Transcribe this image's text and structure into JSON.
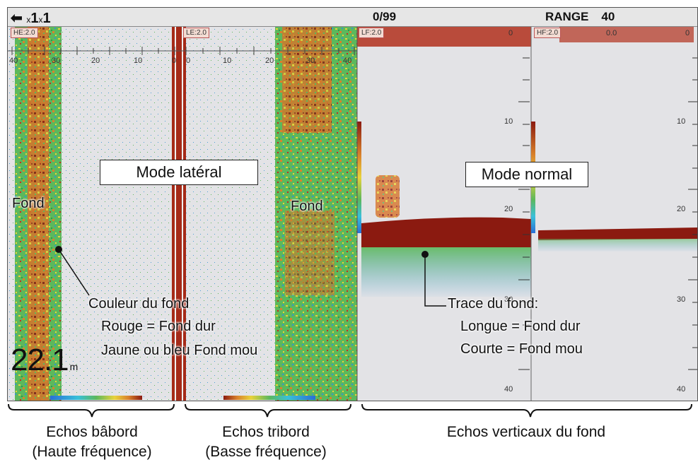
{
  "topbar": {
    "back_icon": "left-arrow-icon",
    "zoom_a": "1",
    "zoom_b": "1",
    "zoom_prefix": "x",
    "counter": "0/99",
    "range_label": "RANGE",
    "range_value": "40"
  },
  "panels": {
    "port_tag": "HE:2.0",
    "starboard_tag": "LE:2.0",
    "lf_tag": "LF:2.0",
    "hf_tag": "HF:2.0",
    "lf_top_scale": "0",
    "hf_top_scale": "0.0",
    "hf_top_scale2": "0"
  },
  "side_scale": {
    "labels": [
      "40",
      "30",
      "20",
      "10",
      "0",
      "0",
      "10",
      "20",
      "30",
      "40"
    ]
  },
  "depth_scale": {
    "labels_lf": [
      "10",
      "20",
      "30",
      "40"
    ],
    "labels_hf": [
      "10",
      "20",
      "30",
      "40"
    ]
  },
  "callouts": {
    "side_mode": "Mode latéral",
    "normal_mode": "Mode normal"
  },
  "annotations": {
    "fond_left": "Fond",
    "fond_right": "Fond",
    "color_title": "Couleur du fond",
    "color_red": "Rouge = Fond dur",
    "color_soft": "Jaune ou bleu Fond mou",
    "trace_title": "Trace du fond:",
    "trace_long": "Longue = Fond dur",
    "trace_short": "Courte = Fond mou"
  },
  "depth_readout": {
    "value": "22.1",
    "unit": "m"
  },
  "captions": {
    "port_line1": "Echos bâbord",
    "port_line2": "(Haute fréquence)",
    "starboard_line1": "Echos tribord",
    "starboard_line2": "(Basse fréquence)",
    "vertical": "Echos verticaux du fond"
  }
}
